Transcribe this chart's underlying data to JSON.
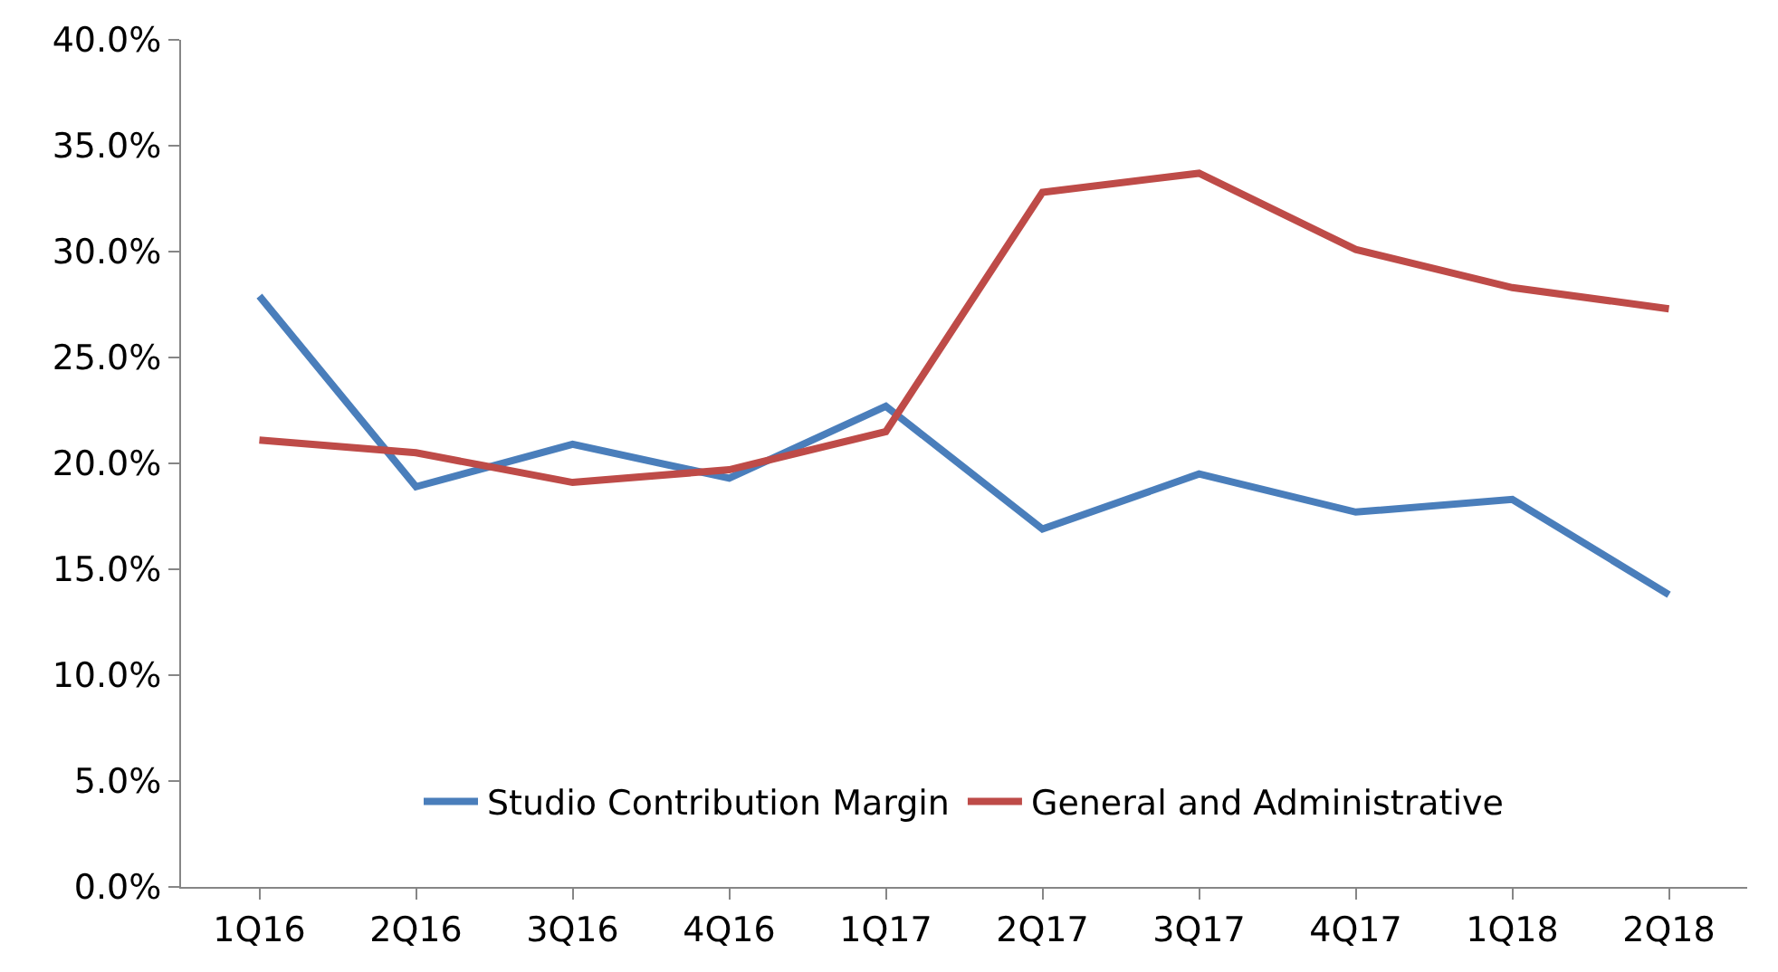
{
  "chart_data": {
    "type": "line",
    "categories": [
      "1Q16",
      "2Q16",
      "3Q16",
      "4Q16",
      "1Q17",
      "2Q17",
      "3Q17",
      "4Q17",
      "1Q18",
      "2Q18"
    ],
    "series": [
      {
        "name": "Studio Contribution Margin",
        "color": "#4a7ebb",
        "values": [
          27.9,
          18.9,
          20.9,
          19.3,
          22.7,
          16.9,
          19.5,
          17.7,
          18.3,
          13.8
        ]
      },
      {
        "name": "General and Administrative",
        "color": "#be4b48",
        "values": [
          21.1,
          20.5,
          19.1,
          19.7,
          21.5,
          32.8,
          33.7,
          30.1,
          28.3,
          27.3
        ]
      }
    ],
    "ylim": [
      0,
      40
    ],
    "yticks": [
      {
        "value": 0,
        "label": "0.0%"
      },
      {
        "value": 5,
        "label": "5.0%"
      },
      {
        "value": 10,
        "label": "10.0%"
      },
      {
        "value": 15,
        "label": "15.0%"
      },
      {
        "value": 20,
        "label": "20.0%"
      },
      {
        "value": 25,
        "label": "25.0%"
      },
      {
        "value": 30,
        "label": "30.0%"
      },
      {
        "value": 35,
        "label": "35.0%"
      },
      {
        "value": 40,
        "label": "40.0%"
      }
    ],
    "grid": false,
    "legend": "bottom",
    "marker": "none",
    "line_style": "solid"
  }
}
